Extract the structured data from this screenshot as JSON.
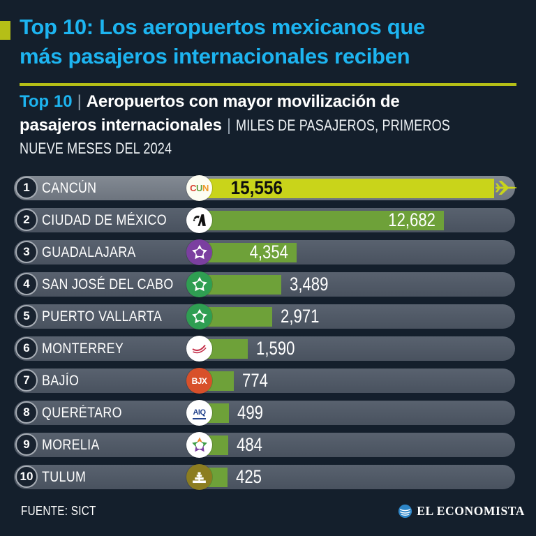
{
  "header": {
    "title_line1": "Top 10: Los aeropuertos mexicanos que",
    "title_line2": "más pasajeros internacionales reciben"
  },
  "subtitle": {
    "label": "Top 10",
    "separator": "|",
    "bold_line1": "Aeropuertos con mayor movilización de",
    "bold_line2": "pasajeros internacionales",
    "units_line1": "MILES DE PASAJEROS, PRIMEROS",
    "units_line2": "NUEVE MESES DEL 2024"
  },
  "colors": {
    "background": "#141f2c",
    "accent_cyan": "#1db4f0",
    "accent_yellow": "#b5bf17",
    "bar_first": "#c9d41a",
    "bar_green": "#6ea139",
    "brand_blue": "#2e86c8"
  },
  "chart_data": {
    "type": "bar",
    "orientation": "horizontal",
    "title": "Top 10: Los aeropuertos mexicanos que más pasajeros internacionales reciben",
    "subtitle": "Aeropuertos con mayor movilización de pasajeros internacionales",
    "units": "Miles de pasajeros, primeros nueve meses del 2024",
    "xlim": [
      0,
      15556
    ],
    "categories": [
      "CANCÚN",
      "CIUDAD DE MÉXICO",
      "GUADALAJARA",
      "SAN JOSÉ DEL CABO",
      "PUERTO VALLARTA",
      "MONTERREY",
      "BAJÍO",
      "QUERÉTARO",
      "MORELIA",
      "TULUM"
    ],
    "values": [
      15556,
      12682,
      4354,
      3489,
      2971,
      1590,
      774,
      499,
      484,
      425
    ],
    "rows": [
      {
        "rank": 1,
        "airport": "CANCÚN",
        "value": 15556,
        "value_label": "15,556",
        "highlight": true,
        "logo": {
          "kind": "letters",
          "icon": "cun-logo",
          "bg": "#fdfdf2",
          "text": "CUN",
          "letter_colors": [
            "#d8402f",
            "#5d9f3e",
            "#ef9a2b"
          ],
          "font_size": 13
        }
      },
      {
        "rank": 2,
        "airport": "CIUDAD DE MÉXICO",
        "value": 12682,
        "value_label": "12,682",
        "logo": {
          "kind": "aicm",
          "icon": "aicm-logo",
          "bg": "#ffffff",
          "fg": "#101010"
        }
      },
      {
        "rank": 3,
        "airport": "GUADALAJARA",
        "value": 4354,
        "value_label": "4,354",
        "logo": {
          "kind": "star",
          "icon": "gap-star-logo",
          "bg": "#7b3fa0",
          "petals": [
            "#ffffff",
            "#ffffff",
            "#ffffff",
            "#ffffff",
            "#ffffff"
          ]
        }
      },
      {
        "rank": 4,
        "airport": "SAN JOSÉ DEL CABO",
        "value": 3489,
        "value_label": "3,489",
        "logo": {
          "kind": "star",
          "icon": "gap-star-logo",
          "bg": "#2f9e52",
          "petals": [
            "#ffffff",
            "#ffffff",
            "#ffffff",
            "#ffffff",
            "#ffffff"
          ]
        }
      },
      {
        "rank": 5,
        "airport": "PUERTO VALLARTA",
        "value": 2971,
        "value_label": "2,971",
        "logo": {
          "kind": "star",
          "icon": "gap-star-logo",
          "bg": "#2f9e52",
          "petals": [
            "#ffffff",
            "#ffffff",
            "#ffffff",
            "#ffffff",
            "#ffffff"
          ]
        }
      },
      {
        "rank": 6,
        "airport": "MONTERREY",
        "value": 1590,
        "value_label": "1,590",
        "logo": {
          "kind": "oma",
          "icon": "oma-logo",
          "bg": "#ffffff",
          "fg": "#c5314b"
        }
      },
      {
        "rank": 7,
        "airport": "BAJÍO",
        "value": 774,
        "value_label": "774",
        "logo": {
          "kind": "letters",
          "icon": "bjx-logo",
          "bg": "#d8502a",
          "text": "BJX",
          "letter_colors": [
            "#ffffff",
            "#ffffff",
            "#ffffff"
          ],
          "font_size": 12
        }
      },
      {
        "rank": 8,
        "airport": "QUERÉTARO",
        "value": 499,
        "value_label": "499",
        "logo": {
          "kind": "aiq",
          "icon": "aiq-logo",
          "bg": "#ffffff",
          "text": "AIQ",
          "fg": "#21418c",
          "font_size": 11
        }
      },
      {
        "rank": 9,
        "airport": "MORELIA",
        "value": 484,
        "value_label": "484",
        "logo": {
          "kind": "star",
          "icon": "morelia-star-logo",
          "bg": "#ffffff",
          "petals": [
            "#e8872c",
            "#3f9e46",
            "#7b3fa0",
            "#7b3fa0",
            "#3f9e46"
          ]
        }
      },
      {
        "rank": 10,
        "airport": "TULUM",
        "value": 425,
        "value_label": "425",
        "logo": {
          "kind": "pyramid",
          "icon": "tulum-pyramid-logo",
          "bg": "#8c7d20",
          "fg": "#ffffff"
        }
      }
    ]
  },
  "footer": {
    "source_label": "FUENTE: SICT",
    "brand": "EL ECONOMISTA"
  }
}
